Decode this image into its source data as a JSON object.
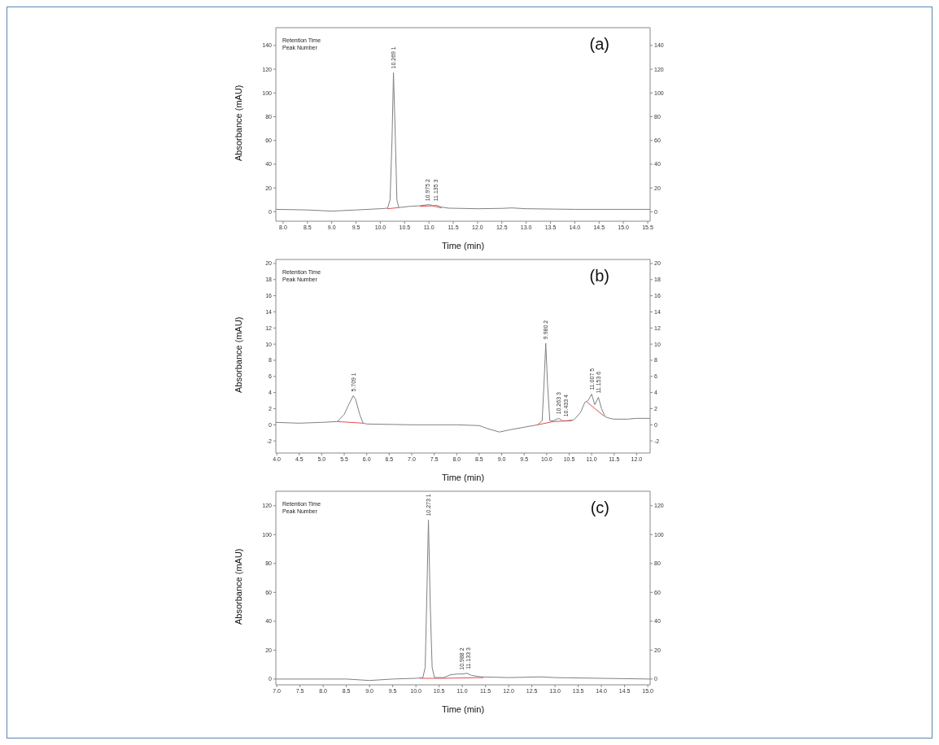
{
  "chart_data": [
    {
      "type": "line",
      "title": "(a)",
      "xlabel": "Time (min)",
      "ylabel": "Absorbance (mAU)",
      "xlim": [
        7.85,
        15.55
      ],
      "xticks": [
        {
          "value": 8,
          "label": "8.0"
        },
        8.5,
        {
          "value": 9,
          "label": "9.0"
        },
        9.5,
        {
          "value": 10,
          "label": "10.0"
        },
        10.5,
        {
          "value": 11,
          "label": "11.0"
        },
        11.5,
        {
          "value": 12,
          "label": "12.0"
        },
        12.5,
        {
          "value": 13,
          "label": "13.0"
        },
        13.5,
        {
          "value": 14,
          "label": "14.0"
        },
        14.5,
        {
          "value": 15,
          "label": "15.0"
        },
        15.5
      ],
      "ylim": [
        -8,
        155
      ],
      "yticks": [
        0,
        20,
        40,
        60,
        80,
        100,
        120,
        140
      ],
      "y2lim": [
        -8,
        155
      ],
      "y2ticks": [
        0,
        20,
        40,
        60,
        80,
        100,
        120,
        140
      ],
      "series": [
        {
          "color": "#808080",
          "x": [
            7.85,
            8.5,
            9.0,
            9.5,
            10.0,
            10.15,
            10.2,
            10.24,
            10.27,
            10.31,
            10.34,
            10.38,
            10.6,
            10.8,
            11.0,
            11.1,
            11.15,
            11.25,
            11.4,
            12.0,
            12.5,
            12.7,
            13.0,
            14.0,
            15.55
          ],
          "values": [
            2,
            1.5,
            0.5,
            1.5,
            2.5,
            3,
            10,
            60,
            117,
            60,
            10,
            3.5,
            4.5,
            5,
            6,
            5,
            5.5,
            4,
            3,
            2.5,
            2.8,
            3.2,
            2.5,
            2,
            2
          ]
        },
        {
          "color": "#e05050",
          "x": [
            10.15,
            10.38
          ],
          "values": [
            2.5,
            3.5
          ]
        },
        {
          "color": "#e05050",
          "x": [
            10.82,
            11.07,
            11.25
          ],
          "values": [
            4.5,
            5,
            3.2
          ]
        }
      ],
      "annotations": [
        "Retention Time",
        "Peak Number",
        {
          "text": "10.269 1",
          "x": 10.269,
          "y": 117
        },
        {
          "text": "10.975 2",
          "x": 10.975,
          "y": 5.5
        },
        {
          "text": "11.135 3",
          "x": 11.135,
          "y": 5.5
        }
      ]
    },
    {
      "type": "line",
      "title": "(b)",
      "xlabel": "Time (min)",
      "ylabel": "Absorbance (mAU)",
      "xlim": [
        3.98,
        12.3
      ],
      "xticks": [
        {
          "value": 4,
          "label": "4.0"
        },
        4.5,
        {
          "value": 5,
          "label": "5.0"
        },
        5.5,
        {
          "value": 6,
          "label": "6.0"
        },
        6.5,
        {
          "value": 7,
          "label": "7.0"
        },
        7.5,
        {
          "value": 8,
          "label": "8.0"
        },
        8.5,
        {
          "value": 9,
          "label": "9.0"
        },
        9.5,
        {
          "value": 10,
          "label": "10.0"
        },
        10.5,
        {
          "value": 11,
          "label": "11.0"
        },
        11.5,
        {
          "value": 12,
          "label": "12.0"
        }
      ],
      "ylim": [
        -3.5,
        20.5
      ],
      "yticks": [
        -2,
        0,
        2,
        4,
        6,
        8,
        10,
        12,
        14,
        16,
        18,
        20
      ],
      "y2lim": [
        -3.5,
        20.5
      ],
      "y2ticks": [
        -2,
        0,
        2,
        4,
        6,
        8,
        10,
        12,
        14,
        16,
        18,
        20
      ],
      "series": [
        {
          "color": "#808080",
          "x": [
            3.98,
            4.5,
            5.0,
            5.35,
            5.5,
            5.6,
            5.7,
            5.75,
            5.85,
            5.92,
            6.0,
            7.0,
            8.0,
            8.5,
            8.7,
            8.95,
            9.2,
            9.5,
            9.8,
            9.9,
            9.94,
            9.98,
            10.02,
            10.07,
            10.15,
            10.27,
            10.35,
            10.43,
            10.6,
            10.75,
            10.85,
            10.92,
            11.0,
            11.07,
            11.15,
            11.22,
            11.3,
            11.4,
            11.5,
            11.8,
            12.0,
            12.3
          ],
          "values": [
            0.3,
            0.2,
            0.3,
            0.4,
            1.3,
            2.5,
            3.6,
            3.2,
            1.2,
            0.2,
            0.1,
            0,
            0,
            -0.1,
            -0.5,
            -0.9,
            -0.6,
            -0.3,
            0,
            0.5,
            5,
            10.1,
            5,
            0.5,
            0.5,
            0.8,
            0.5,
            0.5,
            0.6,
            1.5,
            2.8,
            3,
            3.8,
            2.5,
            3.4,
            2,
            1,
            0.8,
            0.7,
            0.7,
            0.8,
            0.8
          ]
        },
        {
          "color": "#e05050",
          "x": [
            5.35,
            5.92
          ],
          "values": [
            0.4,
            0.2
          ]
        },
        {
          "color": "#e05050",
          "x": [
            9.8,
            10.15,
            10.55
          ],
          "values": [
            0,
            0.4,
            0.5
          ]
        },
        {
          "color": "#e05050",
          "x": [
            10.9,
            11.27
          ],
          "values": [
            2.8,
            1.1
          ]
        }
      ],
      "annotations": [
        "Retention Time",
        "Peak Number",
        {
          "text": "5.709 1",
          "x": 5.709,
          "y": 3.6
        },
        {
          "text": "9.980 2",
          "x": 9.98,
          "y": 10.1
        },
        {
          "text": "10.263 3",
          "x": 10.263,
          "y": 0.8
        },
        {
          "text": "10.433 4",
          "x": 10.433,
          "y": 0.5
        },
        {
          "text": "11.007 5",
          "x": 11.007,
          "y": 3.8
        },
        {
          "text": "11.153 6",
          "x": 11.153,
          "y": 3.4
        }
      ]
    },
    {
      "type": "line",
      "title": "(c)",
      "xlabel": "Time (min)",
      "ylabel": "Absorbance (mAU)",
      "xlim": [
        6.98,
        15.05
      ],
      "xticks": [
        {
          "value": 7,
          "label": "7.0"
        },
        7.5,
        {
          "value": 8,
          "label": "8.0"
        },
        8.5,
        {
          "value": 9,
          "label": "9.0"
        },
        9.5,
        {
          "value": 10,
          "label": "10.0"
        },
        10.5,
        {
          "value": 11,
          "label": "11.0"
        },
        11.5,
        {
          "value": 12,
          "label": "12.0"
        },
        12.5,
        {
          "value": 13,
          "label": "13.0"
        },
        13.5,
        {
          "value": 14,
          "label": "14.0"
        },
        14.5,
        {
          "value": 15,
          "label": "15.0"
        }
      ],
      "ylim": [
        -4,
        130
      ],
      "yticks": [
        0,
        20,
        40,
        60,
        80,
        100,
        120
      ],
      "y2lim": [
        -4,
        130
      ],
      "y2ticks": [
        0,
        20,
        40,
        60,
        80,
        100,
        120
      ],
      "series": [
        {
          "color": "#808080",
          "x": [
            6.98,
            8.0,
            8.5,
            9.0,
            9.5,
            10.0,
            10.15,
            10.2,
            10.23,
            10.27,
            10.31,
            10.35,
            10.4,
            10.6,
            10.75,
            10.9,
            11.0,
            11.1,
            11.2,
            11.4,
            12.0,
            12.7,
            13.0,
            14.0,
            15.05
          ],
          "values": [
            0,
            0,
            0,
            -1,
            0,
            0.5,
            1,
            8,
            50,
            110,
            50,
            8,
            1,
            1,
            3,
            3.5,
            3.5,
            4,
            2.5,
            1.5,
            1,
            1.5,
            1,
            0.5,
            0
          ]
        },
        {
          "color": "#e05050",
          "x": [
            10.1,
            10.55,
            11.45
          ],
          "values": [
            0.5,
            0.5,
            1
          ]
        }
      ],
      "annotations": [
        "Retention Time",
        "Peak Number",
        {
          "text": "10.273 1",
          "x": 10.273,
          "y": 110
        },
        {
          "text": "10.988 2",
          "x": 10.988,
          "y": 3.5
        },
        {
          "text": "11.133 3",
          "x": 11.133,
          "y": 4
        }
      ]
    }
  ]
}
